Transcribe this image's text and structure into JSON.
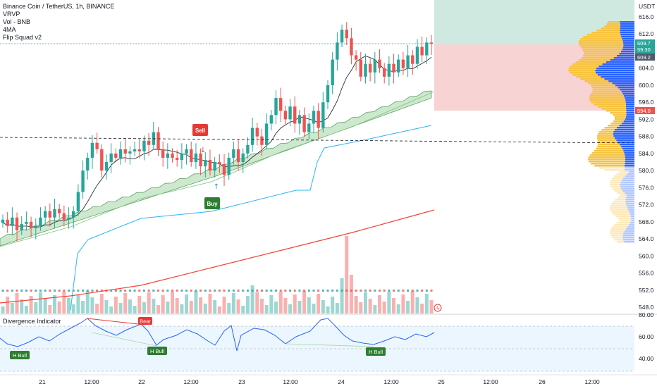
{
  "legend": {
    "title": "Binance Coin / TetherUS, 1h, BINANCE",
    "indicators": [
      "VRVP",
      "Vol - BNB",
      "4MA",
      "Flip Squad v2"
    ]
  },
  "price_axis": {
    "currency": "USDT",
    "ticks": [
      "616.0",
      "612.0",
      "608.0",
      "604.0",
      "600.0",
      "596.0",
      "592.0",
      "588.0",
      "584.0",
      "580.0",
      "576.0",
      "572.0",
      "568.0",
      "564.0",
      "560.0",
      "556.0",
      "552.0",
      "548.0"
    ],
    "current_price": "609.7",
    "countdown": "59:30",
    "label_2": "609.2",
    "label_3": "594.0"
  },
  "time_axis": {
    "ticks": [
      "21",
      "12:00",
      "22",
      "12:00",
      "23",
      "12:00",
      "24",
      "12:00",
      "25",
      "12:00",
      "26",
      "12:00"
    ]
  },
  "signals": {
    "sell": "Sell",
    "buy": "Buy",
    "bear": "Bear",
    "h_bull_1": "H Bull",
    "h_bull_2": "H Bull",
    "h_bull_3": "H Bull"
  },
  "divergence": {
    "title": "Divergence Indicator",
    "ticks": [
      "80.00",
      "60.00",
      "40.00"
    ]
  },
  "colors": {
    "up": "#26a69a",
    "down": "#ef5350",
    "ema_blue": "#29b6f6",
    "ema_red": "#f44336",
    "ribbon_fill": "#c8e6c9",
    "ribbon_line": "#388e3c",
    "vp_up": "#f6c343",
    "vp_down": "#2962ff",
    "rsi_line": "#2962ff",
    "target_zone": "#cfe9e1",
    "stop_zone": "#f8d3d3"
  },
  "chart_data": {
    "type": "candlestick",
    "symbol": "BNBUSDT",
    "interval": "1h",
    "ylim": [
      546,
      618
    ],
    "ohlc_closes": [
      568.5,
      567,
      569,
      566,
      567.5,
      568,
      566.5,
      567,
      569,
      570.5,
      569,
      571,
      570,
      568.5,
      569,
      570.5,
      575,
      580,
      583,
      586.5,
      585,
      580,
      582,
      584,
      583,
      585,
      584,
      584.5,
      585,
      584.5,
      587,
      586,
      589,
      585,
      583,
      584,
      583,
      582.5,
      584,
      585,
      582,
      584,
      581,
      582.5,
      580,
      582,
      581.5,
      579,
      583,
      585,
      582,
      584,
      586,
      590,
      588,
      586,
      591,
      593,
      597,
      594,
      592,
      595,
      591,
      593,
      589,
      591,
      594,
      590,
      596,
      600,
      606,
      610,
      613,
      611,
      607,
      606,
      602,
      605,
      603,
      606,
      604,
      602,
      605,
      603,
      606,
      604,
      607,
      605,
      609,
      607,
      610,
      609.7
    ]
  }
}
